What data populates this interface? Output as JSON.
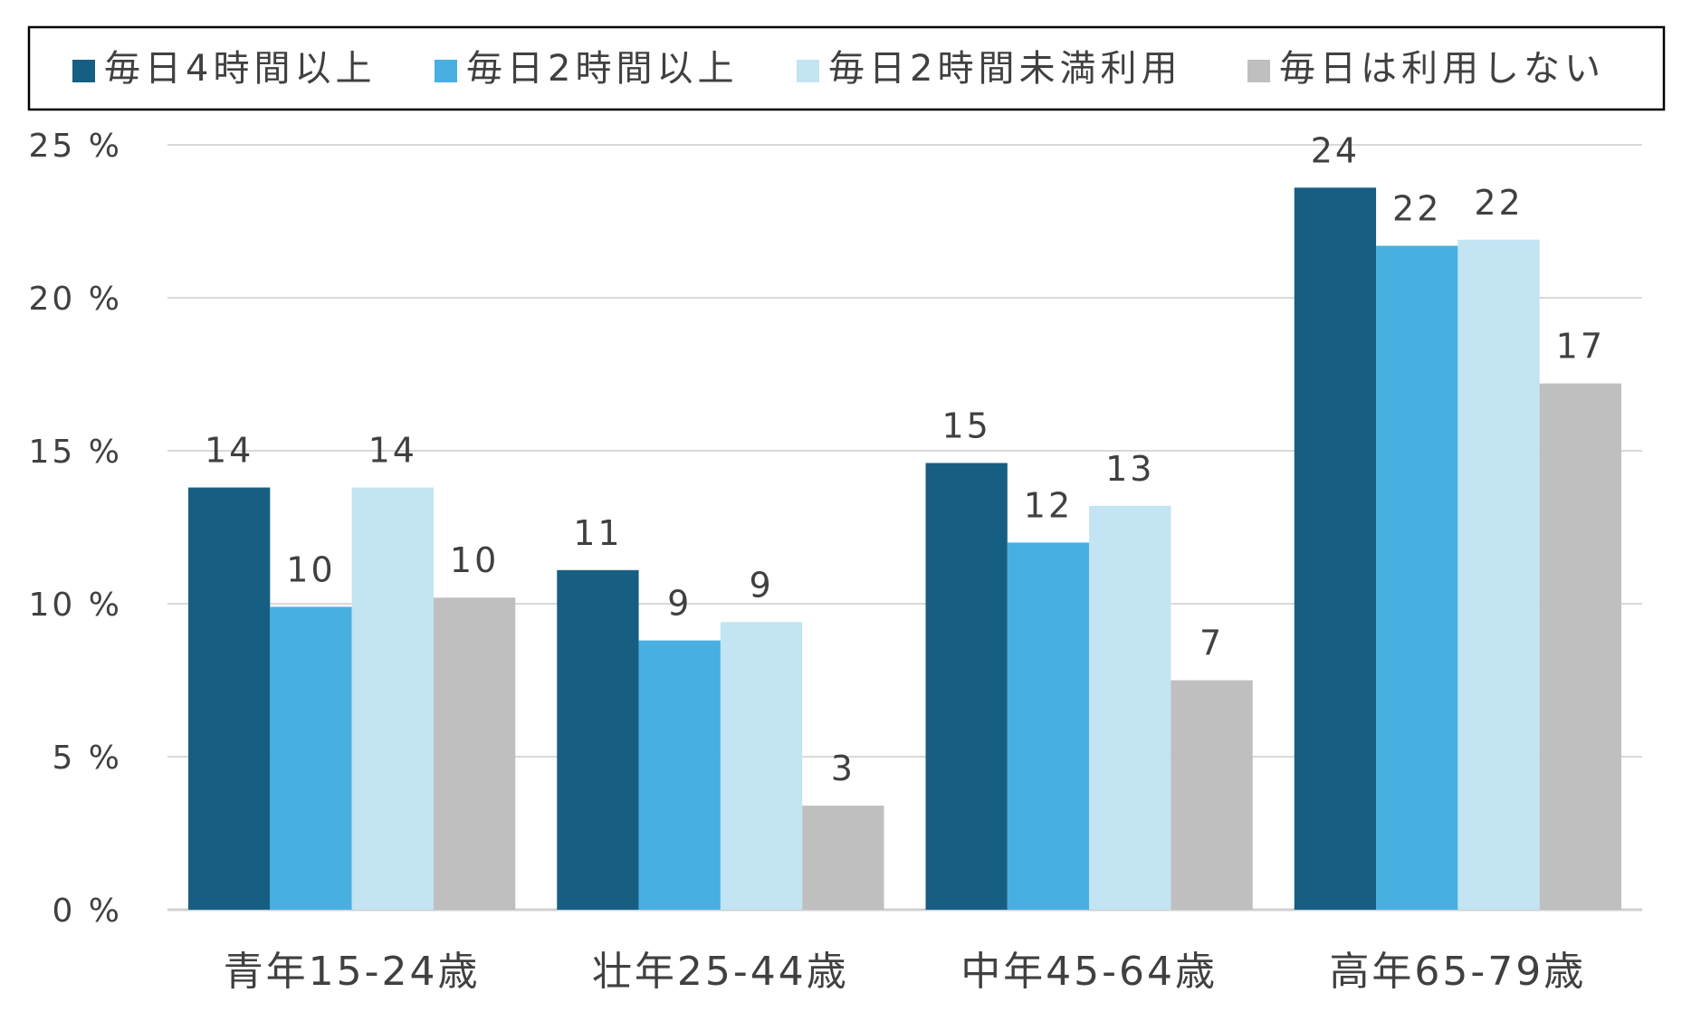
{
  "chart_data": {
    "type": "bar",
    "categories": [
      "青年15-24歳",
      "壮年25-44歳",
      "中年45-64歳",
      "高年65-79歳"
    ],
    "series": [
      {
        "name": "毎日4時間以上",
        "color": "#165f82",
        "values": [
          13.8,
          11.1,
          14.6,
          23.6
        ],
        "labels": [
          "14",
          "11",
          "15",
          "24"
        ]
      },
      {
        "name": "毎日2時間以上",
        "color": "#47b0e0",
        "values": [
          9.9,
          8.8,
          12.0,
          21.7
        ],
        "labels": [
          "10",
          "9",
          "12",
          "22"
        ]
      },
      {
        "name": "毎日2時間未満利用",
        "color": "#c2e4f3",
        "values": [
          13.8,
          9.4,
          13.2,
          21.9
        ],
        "labels": [
          "14",
          "9",
          "13",
          "22"
        ]
      },
      {
        "name": "毎日は利用しない",
        "color": "#bfbfbf",
        "values": [
          10.2,
          3.4,
          7.5,
          17.2
        ],
        "labels": [
          "10",
          "3",
          "7",
          "17"
        ]
      }
    ],
    "ylim": [
      0,
      25
    ],
    "yticks": [
      0,
      5,
      10,
      15,
      20,
      25
    ],
    "ytick_labels": [
      "0 %",
      "5 %",
      "10 %",
      "15 %",
      "20 %",
      "25 %"
    ],
    "grid": true,
    "legend_position": "top",
    "title": "",
    "xlabel": "",
    "ylabel": ""
  }
}
